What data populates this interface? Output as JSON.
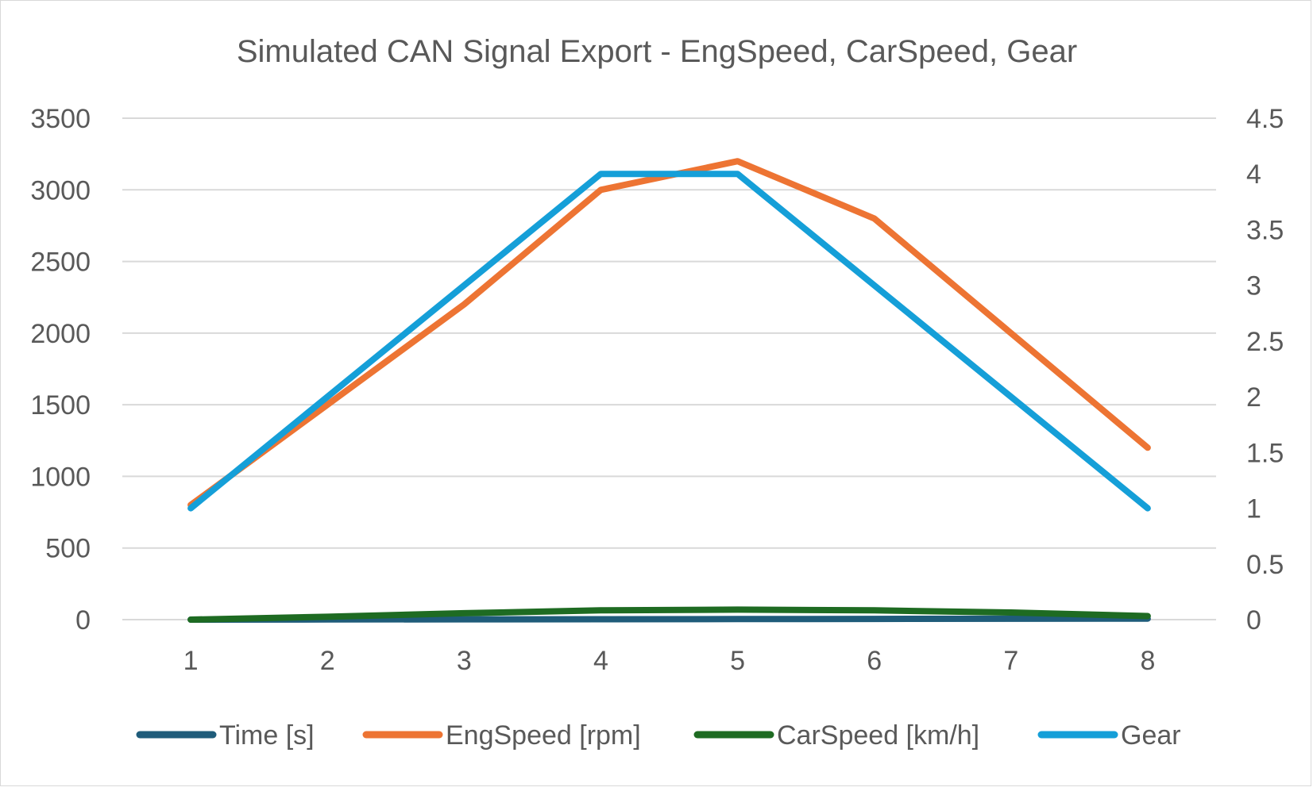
{
  "chart_data": {
    "type": "line",
    "title": "Simulated CAN Signal Export - EngSpeed, CarSpeed, Gear",
    "categories": [
      "1",
      "2",
      "3",
      "4",
      "5",
      "6",
      "7",
      "8"
    ],
    "y_left": {
      "min": 0,
      "max": 3500,
      "ticks": [
        "0",
        "500",
        "1000",
        "1500",
        "2000",
        "2500",
        "3000",
        "3500"
      ]
    },
    "y_right": {
      "min": 0,
      "max": 4.5,
      "ticks": [
        "0",
        "0.5",
        "1",
        "1.5",
        "2",
        "2.5",
        "3",
        "3.5",
        "4",
        "4.5"
      ]
    },
    "grid": true,
    "legend_position": "bottom",
    "series": [
      {
        "name": "Time [s]",
        "axis": "left",
        "color": "#1f5c7a",
        "values": [
          0,
          1,
          2,
          3,
          4,
          5,
          6,
          7
        ]
      },
      {
        "name": "EngSpeed [rpm]",
        "axis": "left",
        "color": "#ed7433",
        "values": [
          800,
          1500,
          2200,
          3000,
          3200,
          2800,
          2000,
          1200
        ]
      },
      {
        "name": "CarSpeed [km/h]",
        "axis": "left",
        "color": "#1e6b22",
        "values": [
          0,
          20,
          45,
          65,
          70,
          65,
          50,
          25
        ]
      },
      {
        "name": "Gear",
        "axis": "right",
        "color": "#159fd8",
        "values": [
          1,
          2,
          3,
          4,
          4,
          3,
          2,
          1
        ]
      }
    ]
  }
}
